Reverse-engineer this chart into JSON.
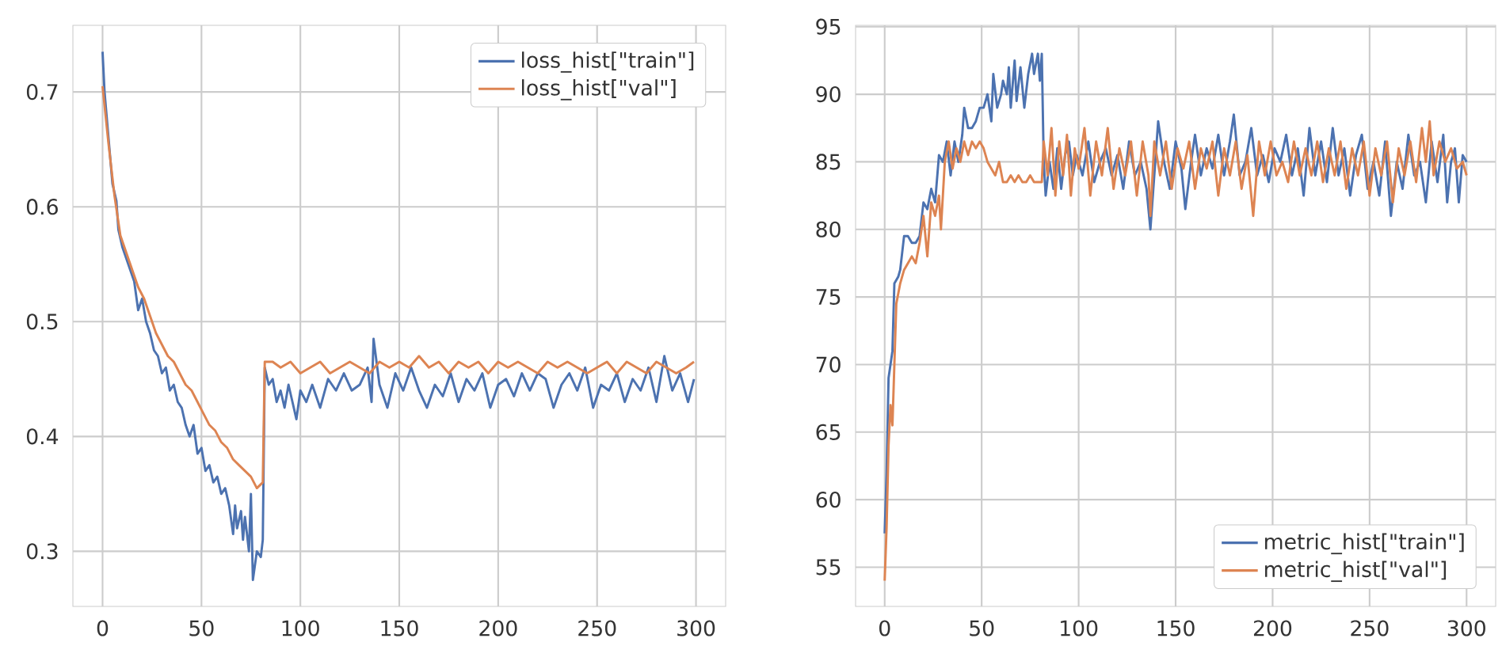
{
  "chart_data": [
    {
      "type": "line",
      "xlim": [
        -15,
        315
      ],
      "ylim": [
        0.252,
        0.758
      ],
      "xticks": [
        0,
        50,
        100,
        150,
        200,
        250,
        300
      ],
      "yticks": [
        0.3,
        0.4,
        0.5,
        0.6,
        0.7
      ],
      "grid": true,
      "legend": "top right",
      "series": [
        {
          "name": "loss_hist[\"train\"]",
          "color": "#4c72b0",
          "x": [
            0,
            1,
            3,
            5,
            7,
            8,
            10,
            12,
            14,
            16,
            18,
            20,
            22,
            24,
            26,
            28,
            30,
            32,
            34,
            36,
            38,
            40,
            42,
            44,
            46,
            48,
            50,
            52,
            54,
            56,
            58,
            60,
            62,
            64,
            66,
            67,
            68,
            70,
            71,
            72,
            74,
            75,
            76,
            78,
            80,
            81,
            82,
            84,
            86,
            88,
            90,
            92,
            94,
            96,
            98,
            100,
            103,
            106,
            110,
            114,
            118,
            122,
            126,
            130,
            134,
            136,
            137,
            140,
            144,
            148,
            152,
            156,
            160,
            164,
            168,
            172,
            176,
            180,
            184,
            188,
            192,
            196,
            200,
            204,
            208,
            212,
            216,
            220,
            224,
            228,
            232,
            236,
            240,
            244,
            248,
            252,
            256,
            260,
            264,
            268,
            272,
            276,
            280,
            284,
            288,
            292,
            296,
            299
          ],
          "values": [
            0.735,
            0.7,
            0.66,
            0.62,
            0.605,
            0.58,
            0.565,
            0.555,
            0.545,
            0.535,
            0.51,
            0.52,
            0.5,
            0.49,
            0.475,
            0.47,
            0.455,
            0.46,
            0.44,
            0.445,
            0.43,
            0.425,
            0.41,
            0.4,
            0.41,
            0.385,
            0.39,
            0.37,
            0.375,
            0.36,
            0.365,
            0.35,
            0.355,
            0.34,
            0.315,
            0.34,
            0.32,
            0.335,
            0.31,
            0.33,
            0.3,
            0.35,
            0.275,
            0.3,
            0.295,
            0.31,
            0.46,
            0.445,
            0.45,
            0.43,
            0.44,
            0.425,
            0.445,
            0.43,
            0.415,
            0.44,
            0.43,
            0.445,
            0.425,
            0.45,
            0.44,
            0.455,
            0.44,
            0.445,
            0.46,
            0.43,
            0.485,
            0.445,
            0.425,
            0.455,
            0.44,
            0.46,
            0.44,
            0.425,
            0.445,
            0.435,
            0.455,
            0.43,
            0.45,
            0.44,
            0.455,
            0.425,
            0.445,
            0.45,
            0.435,
            0.455,
            0.44,
            0.455,
            0.45,
            0.425,
            0.445,
            0.455,
            0.44,
            0.46,
            0.425,
            0.445,
            0.44,
            0.455,
            0.43,
            0.45,
            0.44,
            0.46,
            0.43,
            0.47,
            0.44,
            0.455,
            0.43,
            0.45
          ]
        },
        {
          "name": "loss_hist[\"val\"]",
          "color": "#dd8452",
          "x": [
            0,
            3,
            6,
            9,
            12,
            15,
            18,
            21,
            24,
            27,
            30,
            33,
            36,
            39,
            42,
            45,
            48,
            51,
            54,
            57,
            60,
            63,
            66,
            69,
            72,
            75,
            78,
            81,
            82,
            86,
            90,
            95,
            100,
            105,
            110,
            115,
            120,
            125,
            130,
            135,
            140,
            145,
            150,
            155,
            160,
            165,
            170,
            175,
            180,
            185,
            190,
            195,
            200,
            205,
            210,
            215,
            220,
            225,
            230,
            235,
            240,
            245,
            250,
            255,
            260,
            265,
            270,
            275,
            280,
            285,
            290,
            295,
            299
          ],
          "values": [
            0.705,
            0.655,
            0.61,
            0.575,
            0.56,
            0.545,
            0.53,
            0.52,
            0.505,
            0.49,
            0.48,
            0.47,
            0.465,
            0.455,
            0.445,
            0.44,
            0.43,
            0.42,
            0.41,
            0.405,
            0.395,
            0.39,
            0.38,
            0.375,
            0.37,
            0.365,
            0.355,
            0.36,
            0.465,
            0.465,
            0.46,
            0.465,
            0.455,
            0.46,
            0.465,
            0.455,
            0.46,
            0.465,
            0.46,
            0.455,
            0.465,
            0.46,
            0.465,
            0.46,
            0.47,
            0.46,
            0.465,
            0.455,
            0.465,
            0.46,
            0.465,
            0.455,
            0.465,
            0.46,
            0.465,
            0.46,
            0.455,
            0.465,
            0.46,
            0.465,
            0.46,
            0.455,
            0.46,
            0.465,
            0.455,
            0.465,
            0.46,
            0.455,
            0.465,
            0.46,
            0.455,
            0.46,
            0.465
          ]
        }
      ]
    },
    {
      "type": "line",
      "xlim": [
        -15,
        315
      ],
      "ylim": [
        52.1,
        95.1
      ],
      "xticks": [
        0,
        50,
        100,
        150,
        200,
        250,
        300
      ],
      "yticks": [
        55,
        60,
        65,
        70,
        75,
        80,
        85,
        90,
        95
      ],
      "grid": true,
      "legend": "bottom right",
      "series": [
        {
          "name": "metric_hist[\"train\"]",
          "color": "#4c72b0",
          "x": [
            0,
            1,
            2,
            4,
            5,
            7,
            8,
            10,
            12,
            14,
            16,
            18,
            20,
            22,
            24,
            26,
            28,
            30,
            32,
            34,
            36,
            38,
            40,
            41,
            43,
            45,
            47,
            49,
            51,
            53,
            55,
            56,
            58,
            60,
            61,
            63,
            64,
            65,
            67,
            68,
            70,
            72,
            74,
            76,
            77,
            79,
            80,
            81,
            82,
            83,
            85,
            87,
            89,
            91,
            93,
            95,
            97,
            99,
            102,
            105,
            108,
            111,
            114,
            117,
            120,
            123,
            126,
            129,
            132,
            135,
            137,
            139,
            141,
            144,
            147,
            150,
            153,
            155,
            158,
            160,
            163,
            166,
            169,
            172,
            175,
            178,
            180,
            183,
            186,
            189,
            192,
            195,
            198,
            201,
            204,
            207,
            210,
            213,
            216,
            219,
            222,
            225,
            228,
            231,
            234,
            237,
            240,
            243,
            246,
            249,
            252,
            255,
            258,
            261,
            264,
            267,
            270,
            273,
            276,
            279,
            282,
            285,
            288,
            290,
            292,
            294,
            296,
            298,
            300
          ],
          "values": [
            57.5,
            62,
            69,
            71,
            76,
            76.5,
            77,
            79.5,
            79.5,
            79,
            79,
            79.5,
            82,
            81.5,
            83,
            82,
            85.5,
            85,
            86.5,
            84,
            86.5,
            85,
            87,
            89,
            87.5,
            87.5,
            88,
            89,
            89,
            90,
            88,
            91.5,
            89,
            90,
            91,
            90,
            92,
            89,
            92.5,
            89.5,
            92,
            89,
            91.5,
            93,
            91.5,
            93,
            91,
            93,
            85,
            82.5,
            85,
            83,
            86,
            83,
            85.5,
            86.5,
            84,
            85.5,
            84,
            86.5,
            83.5,
            85,
            86,
            84,
            85.5,
            83,
            86.5,
            84,
            85,
            83,
            80,
            84,
            88,
            85,
            83,
            86.5,
            84.5,
            81.5,
            85,
            87,
            84,
            86,
            84.5,
            87,
            84,
            86.5,
            88.5,
            84,
            85,
            87.5,
            84,
            85.5,
            83.5,
            86,
            85,
            87,
            84,
            86,
            82.5,
            87.5,
            84,
            86.5,
            83.5,
            87.5,
            84,
            86,
            82.5,
            85.5,
            87,
            83,
            85,
            82.5,
            86.5,
            81,
            85,
            83,
            87,
            84,
            85,
            82,
            86.5,
            83.5,
            87,
            82,
            85,
            86,
            82,
            85.5,
            85
          ]
        },
        {
          "name": "metric_hist[\"val\"]",
          "color": "#dd8452",
          "x": [
            0,
            1,
            2,
            3,
            4,
            5,
            6,
            8,
            10,
            12,
            14,
            16,
            18,
            20,
            22,
            24,
            26,
            28,
            29,
            31,
            33,
            35,
            37,
            39,
            41,
            43,
            45,
            47,
            49,
            51,
            53,
            55,
            57,
            59,
            61,
            63,
            65,
            67,
            69,
            71,
            73,
            75,
            77,
            81,
            82,
            84,
            86,
            88,
            90,
            92,
            94,
            96,
            98,
            100,
            103,
            106,
            109,
            112,
            115,
            118,
            121,
            124,
            127,
            130,
            133,
            136,
            137,
            139,
            142,
            145,
            148,
            151,
            154,
            157,
            160,
            163,
            166,
            169,
            172,
            175,
            178,
            181,
            184,
            187,
            190,
            193,
            196,
            199,
            202,
            205,
            208,
            211,
            214,
            217,
            220,
            223,
            226,
            229,
            232,
            235,
            238,
            241,
            244,
            247,
            250,
            253,
            256,
            259,
            262,
            265,
            268,
            271,
            274,
            277,
            279,
            281,
            283,
            286,
            289,
            292,
            295,
            298,
            300
          ],
          "values": [
            54,
            58,
            64,
            67,
            65.5,
            70,
            74.5,
            76,
            77,
            77.5,
            78,
            77.5,
            79,
            81,
            78,
            82,
            81,
            82.5,
            80,
            85,
            86.5,
            84.5,
            86,
            85,
            86.5,
            85.5,
            86.5,
            86,
            86.5,
            86,
            85,
            84.5,
            84,
            85,
            83.5,
            83.5,
            84,
            83.5,
            84,
            83.5,
            83.5,
            84,
            83.5,
            83.5,
            86.5,
            84,
            87.5,
            82.5,
            86.5,
            84,
            87,
            82.5,
            86,
            84.5,
            87.5,
            82.5,
            86.5,
            84,
            87.5,
            83,
            86,
            84,
            86.5,
            82.5,
            86.5,
            84,
            81,
            86.5,
            84,
            86.5,
            83,
            86,
            84.5,
            86.5,
            83,
            86,
            84.5,
            86.5,
            82.5,
            86,
            84,
            86.5,
            83,
            85.5,
            81,
            86.5,
            84,
            86.5,
            84,
            85,
            83.5,
            86.5,
            84,
            86,
            84,
            86.5,
            83.5,
            86,
            84,
            86.5,
            83,
            86,
            84,
            86.5,
            82.5,
            86,
            84,
            86.5,
            82,
            86,
            84,
            86.5,
            83.5,
            87.5,
            85,
            88,
            84,
            86.5,
            85,
            86,
            84.5,
            85,
            84
          ]
        }
      ]
    }
  ]
}
